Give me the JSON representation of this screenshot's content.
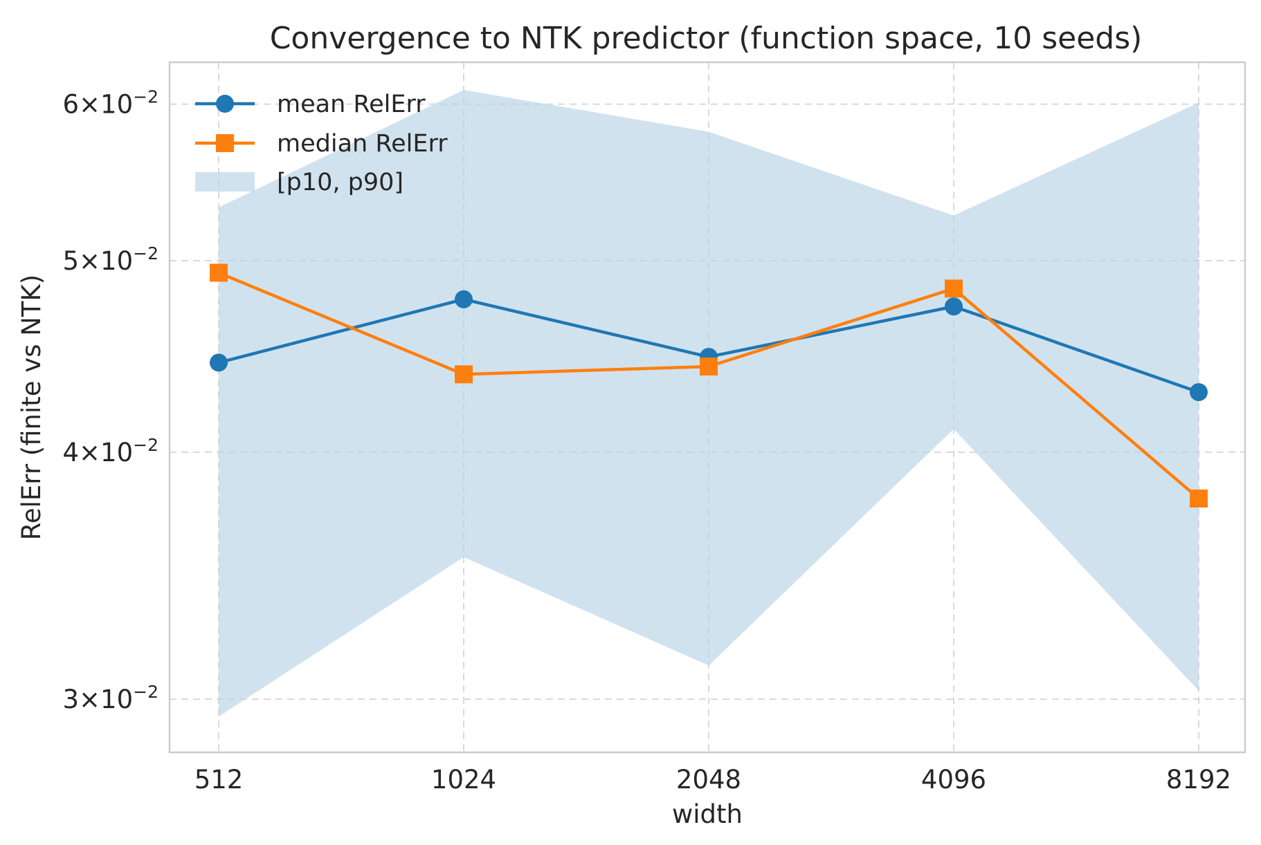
{
  "chart_data": {
    "type": "line",
    "title": "Convergence to NTK predictor (function space, 10 seeds)",
    "xlabel": "width",
    "ylabel": "RelErr (finite vs NTK)",
    "yscale": "log",
    "ylim": [
      0.0282,
      0.063
    ],
    "grid": true,
    "legend_position": "upper-left",
    "categories": [
      "512",
      "1024",
      "2048",
      "4096",
      "8192"
    ],
    "yticks": [
      {
        "value": 0.03,
        "mantissa": "3",
        "base": "10",
        "exp": "−2"
      },
      {
        "value": 0.04,
        "mantissa": "4",
        "base": "10",
        "exp": "−2"
      },
      {
        "value": 0.05,
        "mantissa": "5",
        "base": "10",
        "exp": "−2"
      },
      {
        "value": 0.06,
        "mantissa": "6",
        "base": "10",
        "exp": "−2"
      }
    ],
    "series": [
      {
        "name": "mean RelErr",
        "marker": "circle",
        "color": "#1f77b4",
        "values": [
          0.0444,
          0.0478,
          0.0447,
          0.0474,
          0.0429
        ]
      },
      {
        "name": "median RelErr",
        "marker": "square",
        "color": "#ff7f0e",
        "values": [
          0.0493,
          0.0438,
          0.0442,
          0.0484,
          0.0379
        ]
      }
    ],
    "band": {
      "name": "[p10, p90]",
      "color": "#b9d3e7",
      "lower": [
        0.0294,
        0.0354,
        0.0312,
        0.0411,
        0.0303
      ],
      "upper": [
        0.0532,
        0.061,
        0.0581,
        0.0527,
        0.0601
      ]
    }
  }
}
